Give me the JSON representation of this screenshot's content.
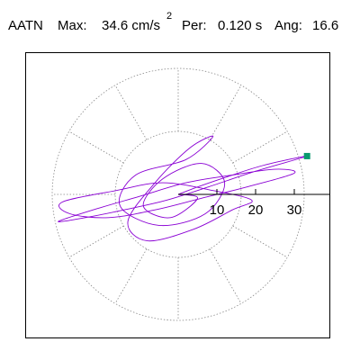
{
  "header": {
    "station": "AATN",
    "max_label": "Max:",
    "max_value": "34.6 cm/s",
    "max_exponent": "2",
    "per_label": "Per:",
    "per_value": "0.120 s",
    "ang_label": "Ang:",
    "ang_value": "16.6"
  },
  "colors": {
    "trace": "#8a00d4",
    "marker": "#0a9a6e",
    "grid": "#888888",
    "axis": "#000000"
  },
  "chart_data": {
    "type": "scatter",
    "subtype": "polar particle-motion (acceleration hodogram)",
    "units": "cm/s2",
    "radial_ticks": [
      10,
      20,
      30
    ],
    "tick_labels": [
      "10",
      "20",
      "30"
    ],
    "grid": true,
    "grid_style": "dotted concentric circles and radial spokes every 30 degrees",
    "max_magnitude": 34.6,
    "max_point": {
      "x": 33.3,
      "y": 9.9
    },
    "x": [
      0,
      5.2,
      12.5,
      22.0,
      33.3,
      20.0,
      8.0,
      -3.0,
      -14.0,
      -24.0,
      -31.0,
      -22.0,
      -10.0,
      2.0,
      14.0,
      25.0,
      30.0,
      18.0,
      6.0,
      -6.0,
      -18.0,
      -28.0,
      -30.0,
      -16.0,
      -4.0,
      9.0,
      19.0,
      14.0,
      4.0,
      -8.0,
      -13.0,
      -6.0,
      3.0,
      9.0,
      2.0,
      -11.0,
      -15.0,
      -5.0,
      7.0,
      12.0,
      6.0,
      -4.0,
      -9.0,
      -2.0,
      5.0,
      0.0
    ],
    "y": [
      0,
      2.0,
      4.5,
      7.5,
      9.9,
      6.0,
      2.0,
      -1.5,
      -4.0,
      -6.0,
      -7.0,
      -4.0,
      -0.5,
      3.0,
      5.0,
      6.5,
      5.5,
      2.0,
      -1.0,
      -4.0,
      -6.0,
      -5.0,
      -2.0,
      1.0,
      3.0,
      1.0,
      -1.5,
      -4.0,
      -9.0,
      -12.0,
      -7.0,
      3.0,
      12.0,
      15.0,
      9.0,
      5.0,
      -3.0,
      -8.0,
      -5.0,
      3.0,
      8.0,
      4.0,
      -3.0,
      -6.0,
      -1.0,
      0
    ]
  }
}
